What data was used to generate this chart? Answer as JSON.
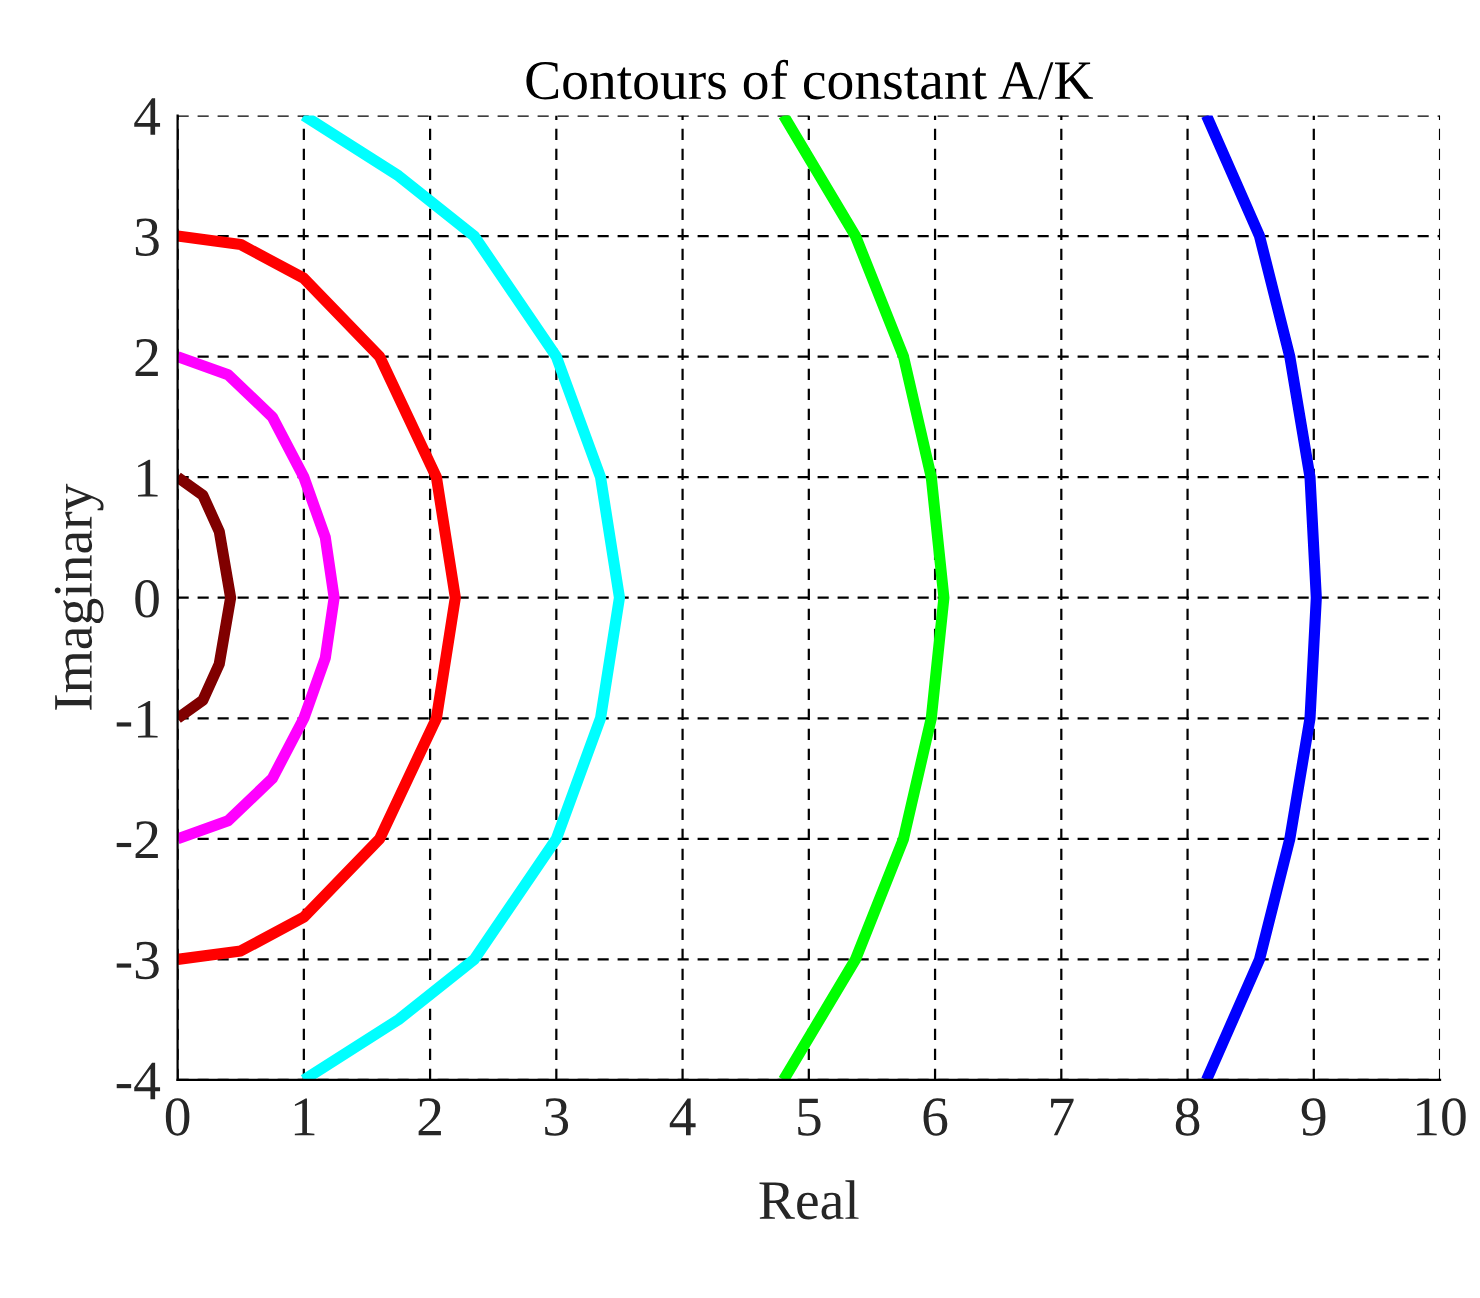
{
  "chart_data": {
    "type": "line",
    "title": "Contours of constant A/K",
    "xlabel": "Real",
    "ylabel": "Imaginary",
    "xlim": [
      0,
      10
    ],
    "ylim": [
      -4,
      4
    ],
    "xticks": [
      0,
      1,
      2,
      3,
      4,
      5,
      6,
      7,
      8,
      9,
      10
    ],
    "yticks": [
      -4,
      -3,
      -2,
      -1,
      0,
      1,
      2,
      3,
      4
    ],
    "grid": true,
    "line_style": "solid",
    "series": [
      {
        "color": "#800000",
        "x": [
          0,
          0.2,
          0.33,
          0.42,
          0.33,
          0.2,
          0
        ],
        "values": [
          1,
          0.85,
          0.55,
          0,
          -0.55,
          -0.85,
          -1
        ]
      },
      {
        "color": "#ff00ff",
        "x": [
          0,
          0.4,
          0.75,
          1.0,
          1.17,
          1.24,
          1.17,
          1.0,
          0.75,
          0.4,
          0
        ],
        "values": [
          2,
          1.85,
          1.5,
          1,
          0.5,
          0,
          -0.5,
          -1,
          -1.5,
          -1.85,
          -2
        ]
      },
      {
        "color": "#ff0000",
        "x": [
          0,
          0.5,
          1.0,
          1.6,
          2.05,
          2.2,
          2.05,
          1.6,
          1.0,
          0.5,
          0
        ],
        "values": [
          3,
          2.93,
          2.65,
          2,
          1,
          0,
          -1,
          -2,
          -2.65,
          -2.93,
          -3
        ]
      },
      {
        "color": "#00ffff",
        "x": [
          1,
          1.75,
          2.35,
          3.0,
          3.35,
          3.5,
          3.35,
          3.0,
          2.35,
          1.75,
          1
        ],
        "values": [
          4,
          3.5,
          3,
          2,
          1,
          0,
          -1,
          -2,
          -3,
          -3.5,
          -4
        ]
      },
      {
        "color": "#00ff00",
        "x": [
          4.8,
          5.37,
          5.75,
          5.97,
          6.07,
          5.97,
          5.75,
          5.37,
          4.8
        ],
        "values": [
          4,
          3,
          2,
          1,
          0,
          -1,
          -2,
          -3,
          -4
        ]
      },
      {
        "color": "#0000ff",
        "x": [
          8.15,
          8.57,
          8.81,
          8.97,
          9.02,
          8.97,
          8.81,
          8.57,
          8.15
        ],
        "values": [
          4,
          3,
          2,
          1,
          0,
          -1,
          -2,
          -3,
          -4
        ]
      }
    ]
  }
}
